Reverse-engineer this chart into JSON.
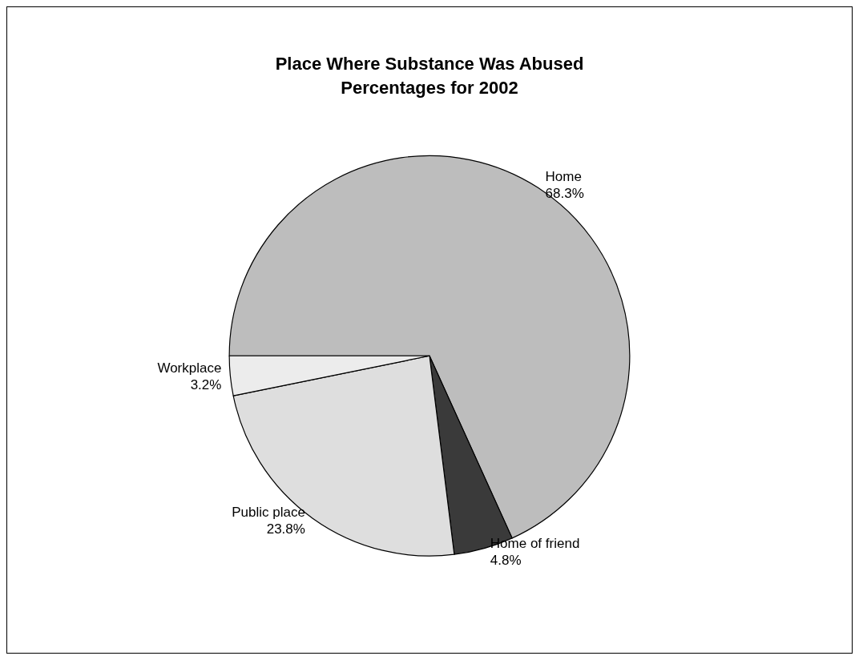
{
  "chart_data": {
    "type": "pie",
    "title": "Place Where Substance Was Abused\nPercentages for 2002",
    "categories": [
      "Home",
      "Home of friend",
      "Public place",
      "Workplace"
    ],
    "values": [
      68.3,
      4.8,
      23.8,
      3.2
    ],
    "value_labels": [
      "68.3%",
      "4.8%",
      "23.8%",
      "3.2%"
    ],
    "colors": [
      "#bdbdbd",
      "#3a3a3a",
      "#dedede",
      "#ececec"
    ],
    "legend": false
  }
}
